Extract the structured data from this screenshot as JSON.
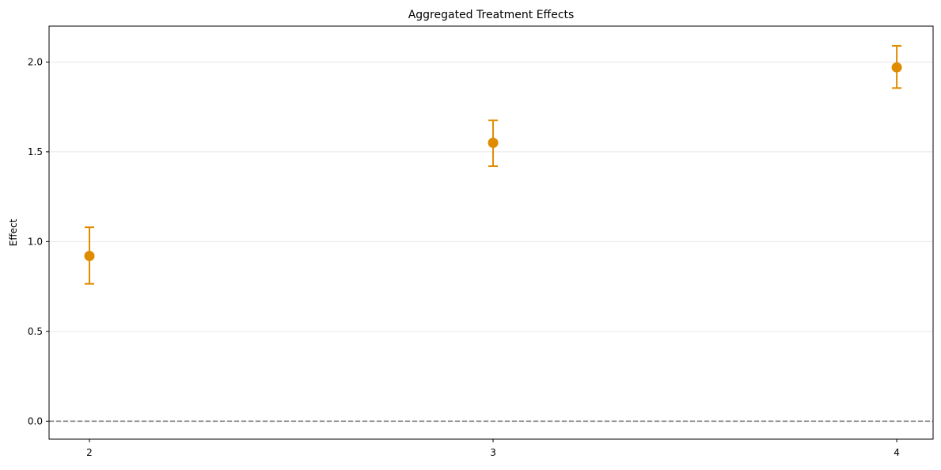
{
  "chart_data": {
    "type": "scatter",
    "title": "Aggregated Treatment Effects",
    "xlabel": "",
    "ylabel": "Effect",
    "x": [
      2,
      3,
      4
    ],
    "x_ticks": [
      "2",
      "3",
      "4"
    ],
    "series": [
      {
        "values": [
          0.92,
          1.55,
          1.97
        ],
        "ci_lower": [
          0.765,
          1.42,
          1.855
        ],
        "ci_upper": [
          1.08,
          1.675,
          2.09
        ],
        "color": "#e08c00"
      }
    ],
    "y_ticks": [
      "0.0",
      "0.5",
      "1.0",
      "1.5",
      "2.0"
    ],
    "ylim": [
      -0.1,
      2.2
    ],
    "reference_line": {
      "y": 0,
      "style": "dashed",
      "color": "#808080"
    },
    "grid": "horizontal"
  }
}
